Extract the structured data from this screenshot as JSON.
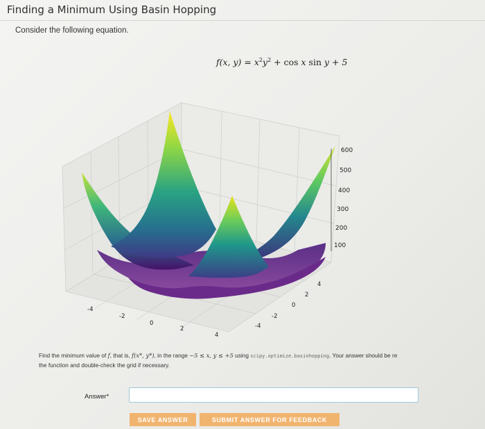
{
  "page": {
    "title": "Finding a Minimum Using Basin Hopping",
    "intro": "Consider the following equation."
  },
  "equation": {
    "lhs": "f(x, y) = x",
    "sq1": "2",
    "mid": "y",
    "sq2": "2",
    "plus1": " + ",
    "cos": "cos",
    "x": " x ",
    "sin": "sin",
    "y": " y + 5"
  },
  "plot": {
    "z_ticks": [
      "600",
      "500",
      "400",
      "300",
      "200",
      "100"
    ],
    "x_ticks": [
      "-4",
      "-2",
      "0",
      "2",
      "4"
    ],
    "y_ticks": [
      "4",
      "2",
      "0",
      "-2",
      "-4"
    ],
    "colormap": [
      "#440154",
      "#3b528b",
      "#21918c",
      "#5ec962",
      "#fde725"
    ]
  },
  "question": {
    "line1_a": "Find the minimum value of ",
    "f": "f",
    "line1_b": ", that is, ",
    "fxy": "f(x*, y*)",
    "line1_c": ", in the range ",
    "range": "−5 ≤ x, y ≤ +5",
    "line1_d": " using ",
    "code": "scipy.optimize.basinhopping",
    "line1_e": ". Your answer should be re",
    "line2": "the function and double-check the grid if necessary."
  },
  "answer": {
    "label": "Answer*",
    "value": ""
  },
  "buttons": {
    "save": "SAVE ANSWER",
    "submit": "SUBMIT ANSWER FOR FEEDBACK"
  }
}
